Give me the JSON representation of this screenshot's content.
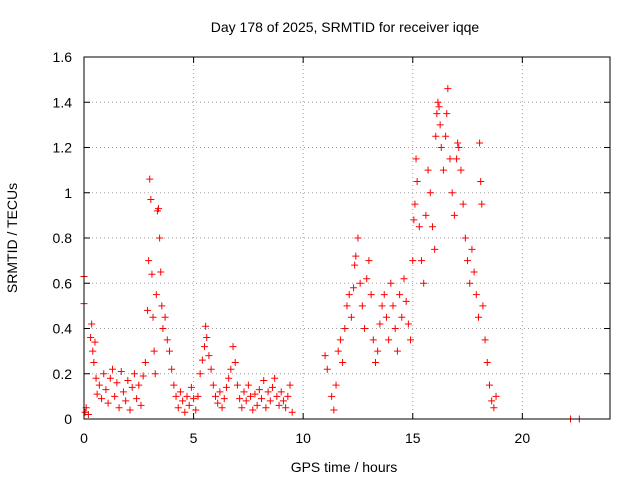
{
  "chart_data": {
    "type": "scatter",
    "title": "Day 178 of 2025, SRMTID for receiver iqqe",
    "xlabel": "GPS time / hours",
    "ylabel": "SRMTID / TECUs",
    "xlim": [
      0,
      24
    ],
    "ylim": [
      0,
      1.6
    ],
    "xticks": [
      0,
      5,
      10,
      15,
      20
    ],
    "xtick_labels": [
      "0",
      "5",
      "10",
      "15",
      "20"
    ],
    "yticks": [
      0,
      0.2,
      0.4,
      0.6,
      0.8,
      1.0,
      1.2,
      1.4,
      1.6
    ],
    "ytick_labels": [
      "0",
      "0.2",
      "0.4",
      "0.6",
      "0.8",
      "1",
      "1.2",
      "1.4",
      "1.6"
    ],
    "grid": true,
    "marker": "+",
    "color": "#ff0000",
    "series": [
      {
        "name": "SRMTID",
        "points": [
          [
            0.0,
            0.63
          ],
          [
            0.0,
            0.51
          ],
          [
            0.05,
            0.03
          ],
          [
            0.1,
            0.05
          ],
          [
            0.2,
            0.02
          ],
          [
            0.3,
            0.36
          ],
          [
            0.35,
            0.42
          ],
          [
            0.4,
            0.3
          ],
          [
            0.45,
            0.25
          ],
          [
            0.5,
            0.34
          ],
          [
            0.55,
            0.18
          ],
          [
            0.6,
            0.11
          ],
          [
            0.7,
            0.15
          ],
          [
            0.8,
            0.09
          ],
          [
            0.9,
            0.2
          ],
          [
            1.0,
            0.13
          ],
          [
            1.1,
            0.07
          ],
          [
            1.2,
            0.18
          ],
          [
            1.3,
            0.22
          ],
          [
            1.4,
            0.1
          ],
          [
            1.5,
            0.16
          ],
          [
            1.6,
            0.05
          ],
          [
            1.7,
            0.21
          ],
          [
            1.8,
            0.12
          ],
          [
            1.9,
            0.08
          ],
          [
            2.0,
            0.17
          ],
          [
            2.1,
            0.04
          ],
          [
            2.2,
            0.14
          ],
          [
            2.3,
            0.2
          ],
          [
            2.4,
            0.09
          ],
          [
            2.5,
            0.15
          ],
          [
            2.6,
            0.06
          ],
          [
            2.7,
            0.19
          ],
          [
            2.8,
            0.25
          ],
          [
            2.9,
            0.48
          ],
          [
            2.95,
            0.7
          ],
          [
            3.0,
            1.06
          ],
          [
            3.05,
            0.97
          ],
          [
            3.1,
            0.64
          ],
          [
            3.15,
            0.45
          ],
          [
            3.2,
            0.3
          ],
          [
            3.25,
            0.2
          ],
          [
            3.3,
            0.55
          ],
          [
            3.35,
            0.92
          ],
          [
            3.4,
            0.93
          ],
          [
            3.45,
            0.8
          ],
          [
            3.5,
            0.65
          ],
          [
            3.55,
            0.5
          ],
          [
            3.6,
            0.4
          ],
          [
            3.7,
            0.45
          ],
          [
            3.8,
            0.35
          ],
          [
            3.9,
            0.3
          ],
          [
            4.0,
            0.22
          ],
          [
            4.1,
            0.15
          ],
          [
            4.2,
            0.1
          ],
          [
            4.3,
            0.05
          ],
          [
            4.4,
            0.12
          ],
          [
            4.5,
            0.08
          ],
          [
            4.6,
            0.03
          ],
          [
            4.7,
            0.1
          ],
          [
            4.8,
            0.06
          ],
          [
            4.9,
            0.14
          ],
          [
            5.0,
            0.09
          ],
          [
            5.1,
            0.04
          ],
          [
            5.2,
            0.1
          ],
          [
            5.3,
            0.2
          ],
          [
            5.4,
            0.26
          ],
          [
            5.5,
            0.32
          ],
          [
            5.55,
            0.41
          ],
          [
            5.6,
            0.36
          ],
          [
            5.7,
            0.28
          ],
          [
            5.8,
            0.22
          ],
          [
            5.9,
            0.15
          ],
          [
            6.0,
            0.1
          ],
          [
            6.1,
            0.07
          ],
          [
            6.2,
            0.12
          ],
          [
            6.3,
            0.05
          ],
          [
            6.4,
            0.09
          ],
          [
            6.5,
            0.14
          ],
          [
            6.6,
            0.18
          ],
          [
            6.7,
            0.22
          ],
          [
            6.8,
            0.32
          ],
          [
            6.9,
            0.25
          ],
          [
            7.0,
            0.15
          ],
          [
            7.1,
            0.09
          ],
          [
            7.2,
            0.05
          ],
          [
            7.3,
            0.12
          ],
          [
            7.4,
            0.08
          ],
          [
            7.5,
            0.15
          ],
          [
            7.6,
            0.1
          ],
          [
            7.7,
            0.04
          ],
          [
            7.8,
            0.11
          ],
          [
            7.9,
            0.06
          ],
          [
            8.0,
            0.13
          ],
          [
            8.1,
            0.09
          ],
          [
            8.2,
            0.17
          ],
          [
            8.3,
            0.05
          ],
          [
            8.4,
            0.12
          ],
          [
            8.5,
            0.08
          ],
          [
            8.6,
            0.14
          ],
          [
            8.7,
            0.18
          ],
          [
            8.8,
            0.1
          ],
          [
            8.9,
            0.06
          ],
          [
            9.0,
            0.12
          ],
          [
            9.1,
            0.08
          ],
          [
            9.2,
            0.05
          ],
          [
            9.3,
            0.1
          ],
          [
            9.4,
            0.15
          ],
          [
            9.5,
            0.03
          ],
          [
            11.0,
            0.28
          ],
          [
            11.1,
            0.22
          ],
          [
            11.3,
            0.1
          ],
          [
            11.4,
            0.04
          ],
          [
            11.5,
            0.15
          ],
          [
            11.6,
            0.3
          ],
          [
            11.7,
            0.35
          ],
          [
            11.8,
            0.25
          ],
          [
            11.9,
            0.4
          ],
          [
            12.0,
            0.5
          ],
          [
            12.1,
            0.55
          ],
          [
            12.2,
            0.45
          ],
          [
            12.3,
            0.58
          ],
          [
            12.35,
            0.68
          ],
          [
            12.4,
            0.72
          ],
          [
            12.5,
            0.8
          ],
          [
            12.6,
            0.6
          ],
          [
            12.7,
            0.5
          ],
          [
            12.8,
            0.4
          ],
          [
            12.9,
            0.62
          ],
          [
            13.0,
            0.7
          ],
          [
            13.1,
            0.55
          ],
          [
            13.2,
            0.35
          ],
          [
            13.3,
            0.25
          ],
          [
            13.4,
            0.3
          ],
          [
            13.5,
            0.42
          ],
          [
            13.6,
            0.5
          ],
          [
            13.7,
            0.55
          ],
          [
            13.8,
            0.45
          ],
          [
            13.9,
            0.35
          ],
          [
            14.0,
            0.6
          ],
          [
            14.1,
            0.5
          ],
          [
            14.2,
            0.4
          ],
          [
            14.3,
            0.3
          ],
          [
            14.4,
            0.55
          ],
          [
            14.5,
            0.45
          ],
          [
            14.6,
            0.62
          ],
          [
            14.7,
            0.52
          ],
          [
            14.8,
            0.42
          ],
          [
            14.9,
            0.35
          ],
          [
            15.0,
            0.7
          ],
          [
            15.05,
            0.88
          ],
          [
            15.1,
            0.95
          ],
          [
            15.15,
            1.15
          ],
          [
            15.2,
            1.05
          ],
          [
            15.3,
            0.85
          ],
          [
            15.4,
            0.7
          ],
          [
            15.5,
            0.6
          ],
          [
            15.6,
            0.9
          ],
          [
            15.7,
            1.1
          ],
          [
            15.8,
            1.0
          ],
          [
            15.9,
            0.85
          ],
          [
            16.0,
            0.75
          ],
          [
            16.05,
            1.25
          ],
          [
            16.1,
            1.35
          ],
          [
            16.15,
            1.4
          ],
          [
            16.2,
            1.38
          ],
          [
            16.25,
            1.3
          ],
          [
            16.3,
            1.2
          ],
          [
            16.4,
            1.1
          ],
          [
            16.5,
            1.25
          ],
          [
            16.55,
            1.35
          ],
          [
            16.6,
            1.46
          ],
          [
            16.7,
            1.15
          ],
          [
            16.8,
            1.0
          ],
          [
            16.9,
            0.9
          ],
          [
            17.0,
            1.15
          ],
          [
            17.05,
            1.22
          ],
          [
            17.1,
            1.2
          ],
          [
            17.2,
            1.1
          ],
          [
            17.3,
            0.95
          ],
          [
            17.4,
            0.8
          ],
          [
            17.5,
            0.7
          ],
          [
            17.6,
            0.6
          ],
          [
            17.7,
            0.75
          ],
          [
            17.8,
            0.65
          ],
          [
            17.9,
            0.55
          ],
          [
            18.0,
            0.45
          ],
          [
            18.05,
            1.22
          ],
          [
            18.1,
            1.05
          ],
          [
            18.15,
            0.95
          ],
          [
            18.2,
            0.5
          ],
          [
            18.3,
            0.35
          ],
          [
            18.4,
            0.25
          ],
          [
            18.5,
            0.15
          ],
          [
            18.6,
            0.08
          ],
          [
            18.7,
            0.05
          ],
          [
            18.8,
            0.1
          ],
          [
            22.2,
            0.0
          ],
          [
            22.6,
            0.0
          ]
        ]
      }
    ]
  }
}
